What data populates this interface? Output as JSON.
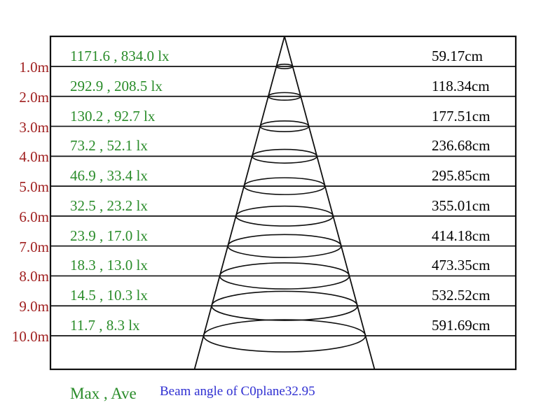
{
  "page": {
    "background": "#ffffff"
  },
  "colors": {
    "lux_text": "#2a8c2a",
    "distance_text": "#a02020",
    "diameter_text": "#000000",
    "beam_label_text": "#3030d2",
    "line": "#111111"
  },
  "footer": {
    "legend_label": "Max , Ave",
    "beam_angle_label": "Beam angle of C0plane32.95"
  },
  "chart_data": {
    "type": "beam-cone-diagram",
    "title": "Beam angle of C0plane32.95",
    "legend": "Max , Ave",
    "beam_angle_deg": 32.95,
    "plane": "C0",
    "units": {
      "distance": "m",
      "illuminance": "lx",
      "diameter": "cm"
    },
    "rows": [
      {
        "distance_label": "1.0m",
        "distance_m": 1.0,
        "max_lux": 1171.6,
        "ave_lux": 834.0,
        "lux_label": "1171.6 , 834.0 lx",
        "diameter_cm": 59.17,
        "diameter_label": "59.17cm"
      },
      {
        "distance_label": "2.0m",
        "distance_m": 2.0,
        "max_lux": 292.9,
        "ave_lux": 208.5,
        "lux_label": "292.9 , 208.5 lx",
        "diameter_cm": 118.34,
        "diameter_label": "118.34cm"
      },
      {
        "distance_label": "3.0m",
        "distance_m": 3.0,
        "max_lux": 130.2,
        "ave_lux": 92.7,
        "lux_label": "130.2 , 92.7 lx",
        "diameter_cm": 177.51,
        "diameter_label": "177.51cm"
      },
      {
        "distance_label": "4.0m",
        "distance_m": 4.0,
        "max_lux": 73.2,
        "ave_lux": 52.1,
        "lux_label": "73.2 , 52.1 lx",
        "diameter_cm": 236.68,
        "diameter_label": "236.68cm"
      },
      {
        "distance_label": "5.0m",
        "distance_m": 5.0,
        "max_lux": 46.9,
        "ave_lux": 33.4,
        "lux_label": "46.9 , 33.4 lx",
        "diameter_cm": 295.85,
        "diameter_label": "295.85cm"
      },
      {
        "distance_label": "6.0m",
        "distance_m": 6.0,
        "max_lux": 32.5,
        "ave_lux": 23.2,
        "lux_label": "32.5 , 23.2 lx",
        "diameter_cm": 355.01,
        "diameter_label": "355.01cm"
      },
      {
        "distance_label": "7.0m",
        "distance_m": 7.0,
        "max_lux": 23.9,
        "ave_lux": 17.0,
        "lux_label": "23.9 , 17.0 lx",
        "diameter_cm": 414.18,
        "diameter_label": "414.18cm"
      },
      {
        "distance_label": "8.0m",
        "distance_m": 8.0,
        "max_lux": 18.3,
        "ave_lux": 13.0,
        "lux_label": "18.3 , 13.0 lx",
        "diameter_cm": 473.35,
        "diameter_label": "473.35cm"
      },
      {
        "distance_label": "9.0m",
        "distance_m": 9.0,
        "max_lux": 14.5,
        "ave_lux": 10.3,
        "lux_label": "14.5 , 10.3 lx",
        "diameter_cm": 532.52,
        "diameter_label": "532.52cm"
      },
      {
        "distance_label": "10.0m",
        "distance_m": 10.0,
        "max_lux": 11.7,
        "ave_lux": 8.3,
        "lux_label": "11.7 , 8.3 lx",
        "diameter_cm": 591.69,
        "diameter_label": "591.69cm"
      }
    ]
  }
}
